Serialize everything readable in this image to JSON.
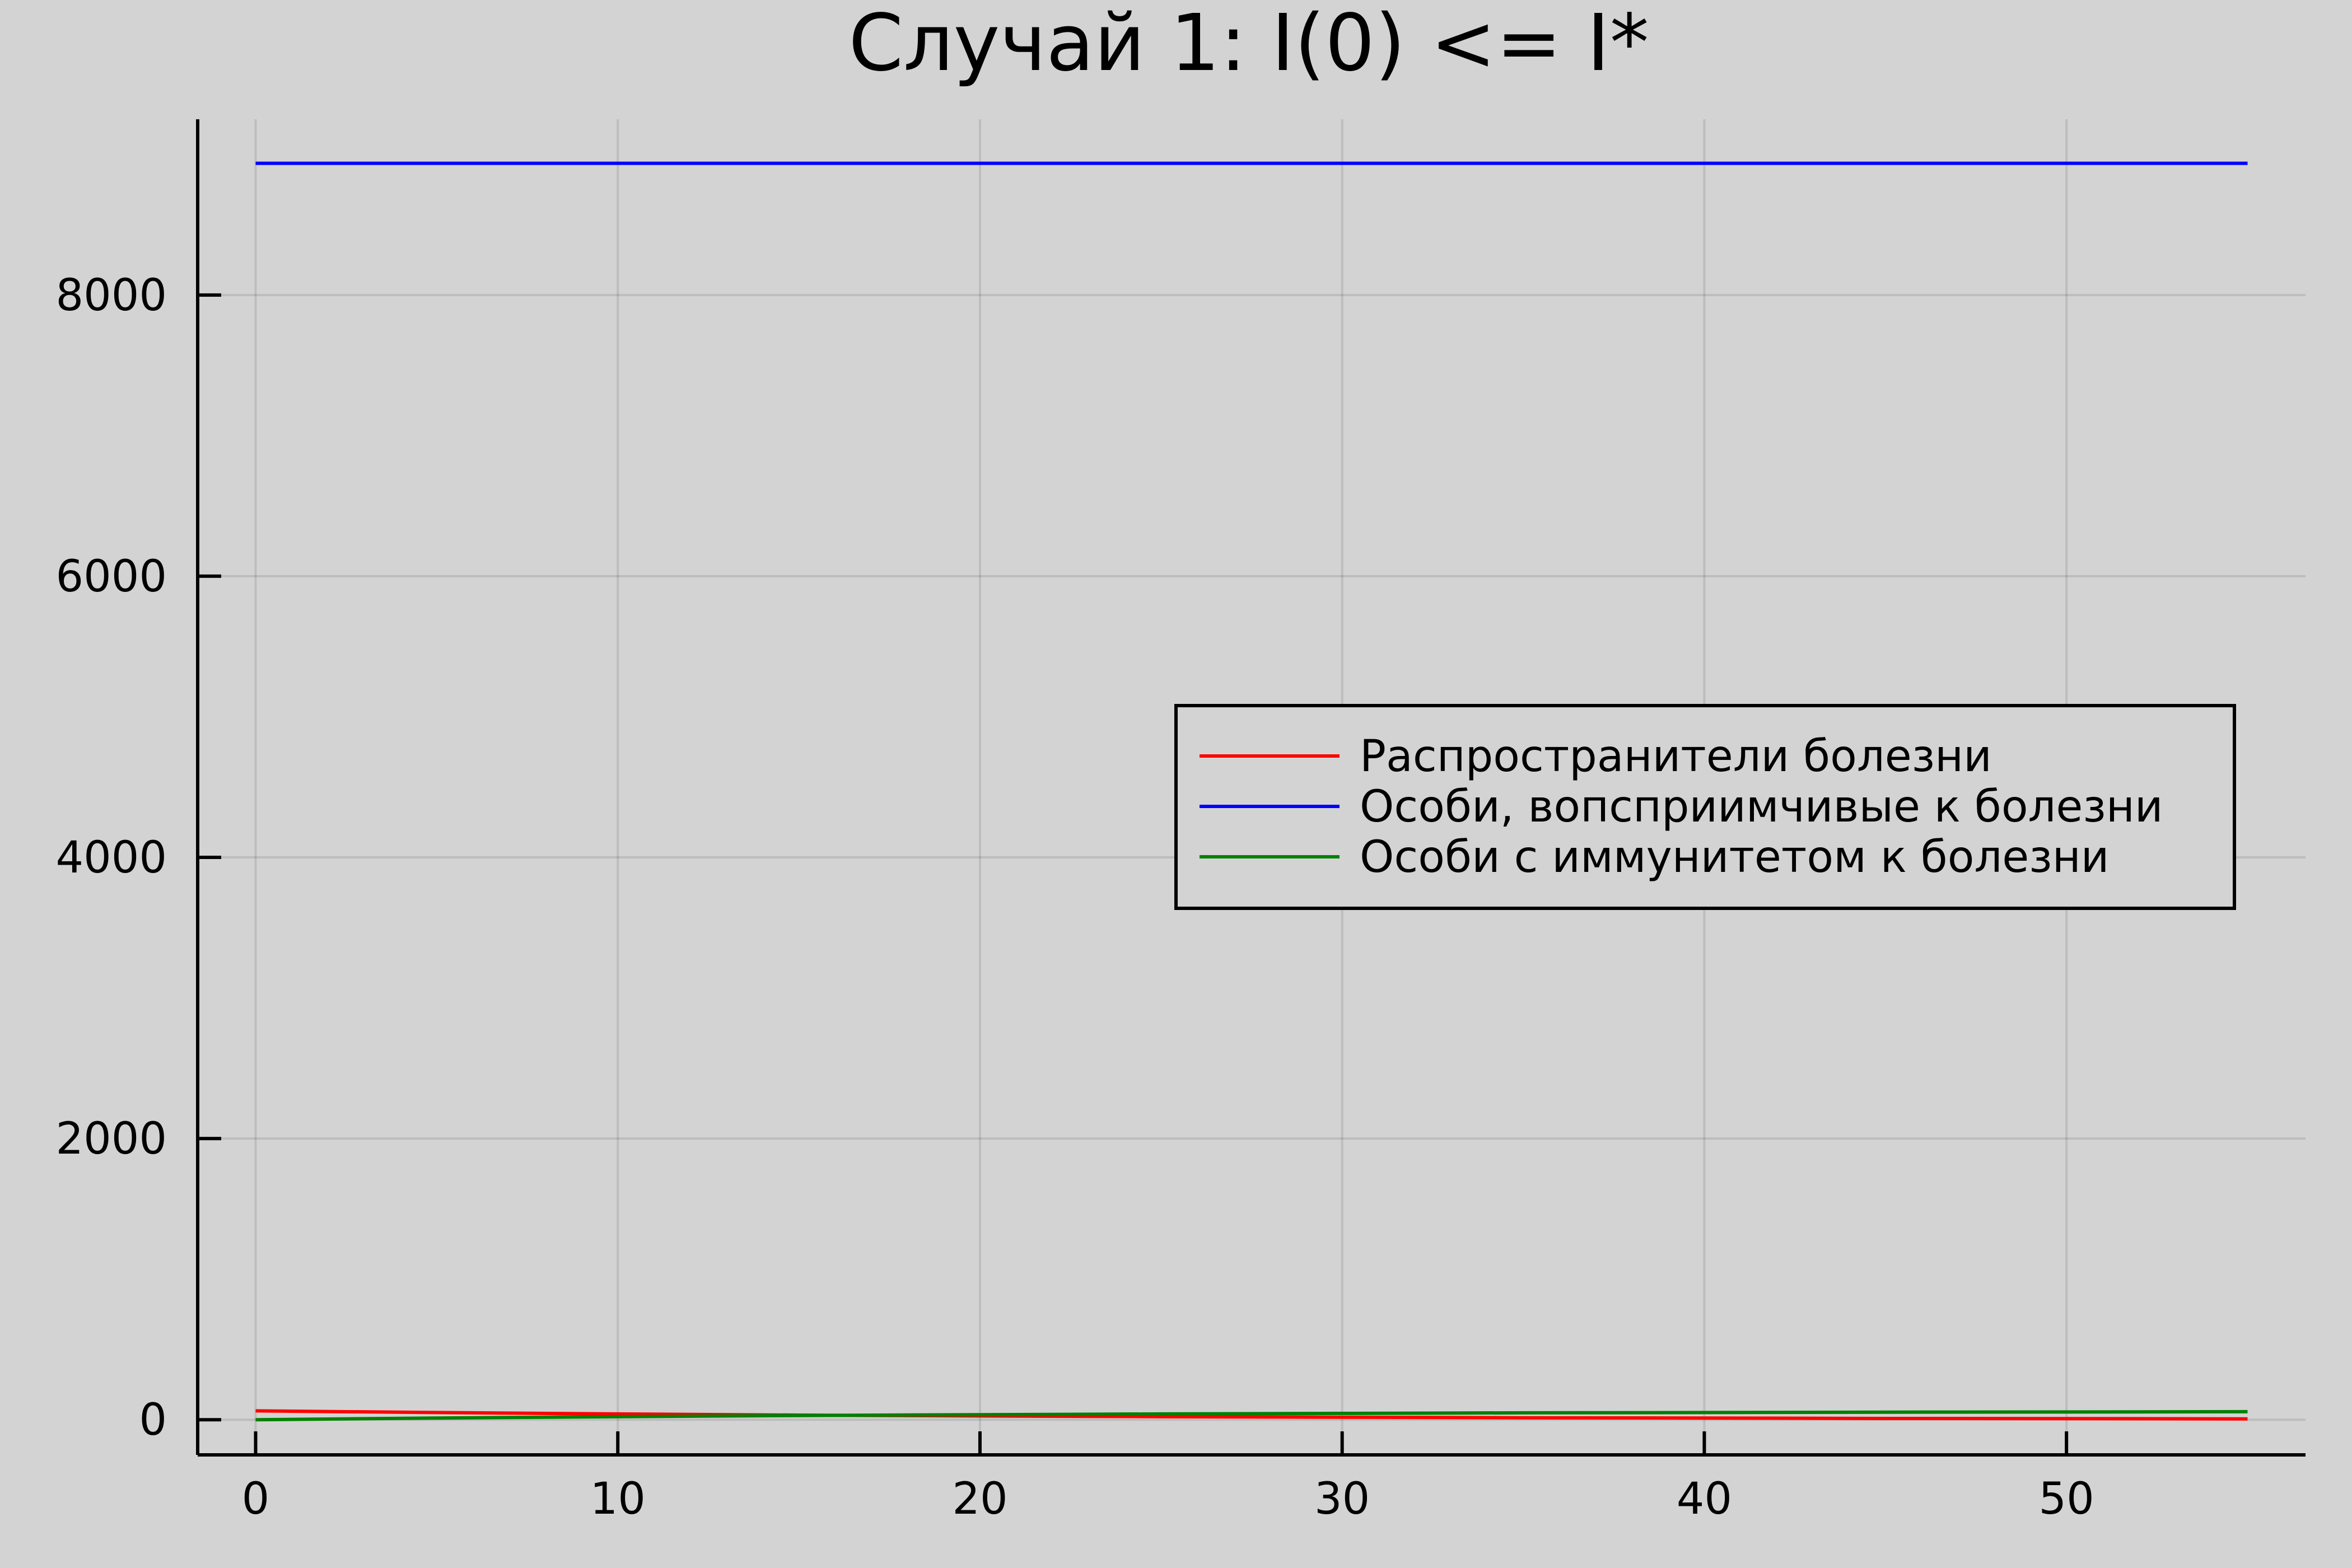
{
  "chart_data": {
    "type": "line",
    "title": "Случай 1: I(0) <= I*",
    "xlabel": "",
    "ylabel": "",
    "xlim": [
      -1.6,
      56.6
    ],
    "ylim": [
      -250,
      9250
    ],
    "xticks": [
      0,
      10,
      20,
      30,
      40,
      50
    ],
    "yticks": [
      0,
      2000,
      4000,
      6000,
      8000
    ],
    "grid": true,
    "legend_position": "right",
    "series": [
      {
        "name": "Распространители болезни",
        "color": "#ff0000",
        "x": [
          0,
          5,
          10,
          15,
          20,
          25,
          30,
          35,
          40,
          45,
          50,
          55
        ],
        "y": [
          63,
          51,
          41,
          33,
          27,
          22,
          18,
          14,
          12,
          9,
          8,
          6
        ]
      },
      {
        "name": "Особи, вопсприимчивые к болезни",
        "color": "#0000ff",
        "x": [
          0,
          55
        ],
        "y": [
          8937,
          8937
        ]
      },
      {
        "name": "Особи с иммунитетом к болезни",
        "color": "#008000",
        "x": [
          0,
          5,
          10,
          15,
          20,
          25,
          30,
          35,
          40,
          45,
          50,
          55
        ],
        "y": [
          0,
          12,
          22,
          30,
          36,
          41,
          45,
          49,
          51,
          54,
          55,
          57
        ]
      }
    ]
  }
}
